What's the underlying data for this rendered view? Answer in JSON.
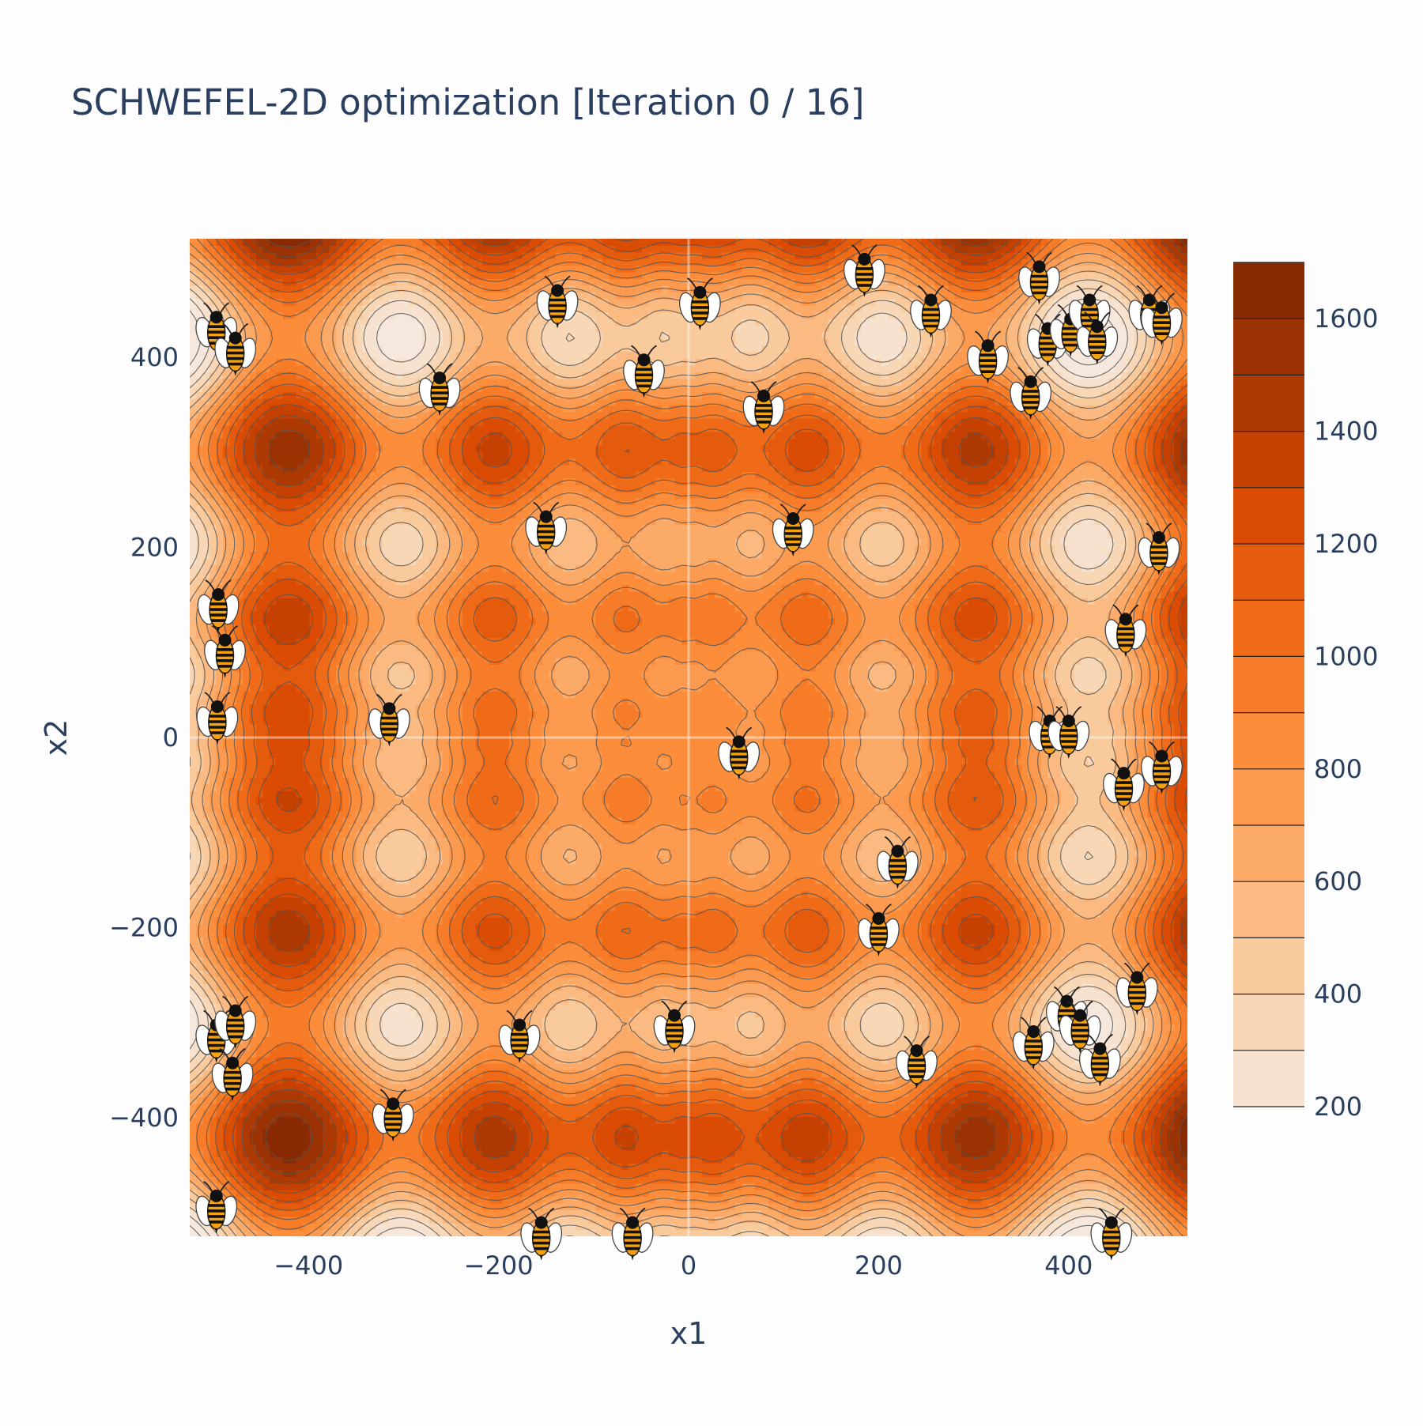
{
  "title": "SCHWEFEL-2D optimization [Iteration 0 / 16]",
  "chart_data": {
    "type": "contour",
    "function": "schwefel",
    "title": "SCHWEFEL-2D optimization [Iteration 0 / 16]",
    "xlabel": "x1",
    "ylabel": "x2",
    "xlim": [
      -525,
      525
    ],
    "ylim": [
      -525,
      525
    ],
    "x_ticks": [
      -400,
      -200,
      0,
      200,
      400
    ],
    "y_ticks": [
      -400,
      -200,
      0,
      200,
      400
    ],
    "x_tick_labels": [
      "−400",
      "−200",
      "0",
      "200",
      "400"
    ],
    "y_tick_labels": [
      "−400",
      "−200",
      "0",
      "200",
      "400"
    ],
    "colorbar": {
      "levels": [
        200,
        300,
        400,
        500,
        600,
        700,
        800,
        900,
        1000,
        1100,
        1200,
        1300,
        1400,
        1500,
        1600,
        1700
      ],
      "tick_values": [
        200,
        400,
        600,
        800,
        1000,
        1200,
        1400,
        1600
      ],
      "tick_labels": [
        "200",
        "400",
        "600",
        "800",
        "1000",
        "1200",
        "1400",
        "1600"
      ],
      "colors": [
        "#f6e8dc",
        "#f9d0a6",
        "#fbad6c",
        "#fc8e3b",
        "#ef6a17",
        "#d84801",
        "#a53603",
        "#7f2704"
      ]
    },
    "contour_level_step": 100,
    "marker": "bee",
    "points": [
      [
        -497,
        430
      ],
      [
        -477,
        408
      ],
      [
        -138,
        458
      ],
      [
        12,
        456
      ],
      [
        185,
        491
      ],
      [
        255,
        448
      ],
      [
        369,
        483
      ],
      [
        -262,
        366
      ],
      [
        -47,
        385
      ],
      [
        79,
        347
      ],
      [
        315,
        400
      ],
      [
        360,
        362
      ],
      [
        378,
        418
      ],
      [
        402,
        428
      ],
      [
        422,
        448
      ],
      [
        430,
        420
      ],
      [
        485,
        448
      ],
      [
        498,
        440
      ],
      [
        -150,
        220
      ],
      [
        110,
        218
      ],
      [
        495,
        198
      ],
      [
        -495,
        138
      ],
      [
        -488,
        90
      ],
      [
        460,
        112
      ],
      [
        -496,
        20
      ],
      [
        -315,
        18
      ],
      [
        53,
        -17
      ],
      [
        380,
        5
      ],
      [
        400,
        5
      ],
      [
        498,
        -32
      ],
      [
        458,
        -50
      ],
      [
        220,
        -132
      ],
      [
        200,
        -203
      ],
      [
        472,
        -265
      ],
      [
        -497,
        -315
      ],
      [
        -477,
        -300
      ],
      [
        -480,
        -355
      ],
      [
        -178,
        -315
      ],
      [
        -15,
        -305
      ],
      [
        240,
        -342
      ],
      [
        363,
        -322
      ],
      [
        398,
        -290
      ],
      [
        412,
        -305
      ],
      [
        433,
        -340
      ],
      [
        -311,
        -398
      ],
      [
        -497,
        -495
      ],
      [
        -155,
        -523
      ],
      [
        -59,
        -523
      ],
      [
        445,
        -523
      ]
    ]
  }
}
